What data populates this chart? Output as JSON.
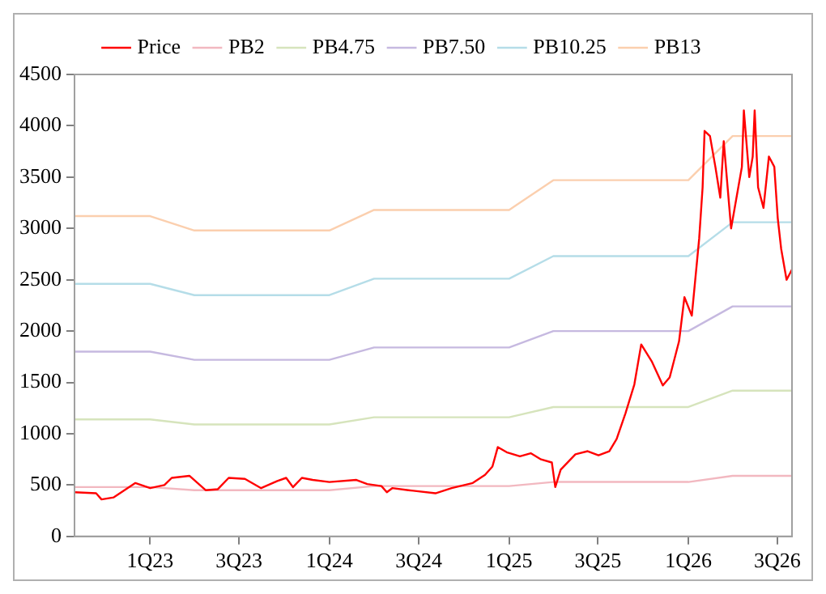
{
  "chart_data": {
    "type": "line",
    "legend": "top",
    "grid": false,
    "marker": "none",
    "line_style": "solid",
    "xlim": [
      "2022-07-31",
      "2026-07-31"
    ],
    "ylim": [
      0,
      4500
    ],
    "yticks": [
      0,
      500,
      1000,
      1500,
      2000,
      2500,
      3000,
      3500,
      4000,
      4500
    ],
    "xticks": [
      {
        "value": "2023-01-01",
        "label": "1Q23"
      },
      {
        "value": "2023-07-01",
        "label": "3Q23"
      },
      {
        "value": "2024-01-01",
        "label": "1Q24"
      },
      {
        "value": "2024-07-01",
        "label": "3Q24"
      },
      {
        "value": "2025-01-01",
        "label": "1Q25"
      },
      {
        "value": "2025-07-01",
        "label": "3Q25"
      },
      {
        "value": "2026-01-01",
        "label": "1Q26"
      },
      {
        "value": "2026-07-01",
        "label": "3Q26"
      }
    ],
    "series": [
      {
        "name": "Price",
        "color": "#ff0000",
        "x": [
          "2022-07-31",
          "2022-09-13",
          "2022-09-24",
          "2022-10-19",
          "2022-12-02",
          "2023-01-01",
          "2023-01-30",
          "2023-02-14",
          "2023-03-22",
          "2023-04-24",
          "2023-05-19",
          "2023-06-10",
          "2023-07-13",
          "2023-08-15",
          "2023-09-17",
          "2023-10-05",
          "2023-10-19",
          "2023-11-06",
          "2023-11-28",
          "2024-01-01",
          "2024-02-25",
          "2024-03-18",
          "2024-04-16",
          "2024-04-27",
          "2024-05-08",
          "2024-06-10",
          "2024-08-04",
          "2024-09-06",
          "2024-10-19",
          "2024-11-13",
          "2024-11-28",
          "2024-12-09",
          "2024-12-27",
          "2025-01-23",
          "2025-02-14",
          "2025-03-07",
          "2025-03-29",
          "2025-04-05",
          "2025-04-16",
          "2025-05-16",
          "2025-06-10",
          "2025-07-02",
          "2025-07-24",
          "2025-08-08",
          "2025-08-26",
          "2025-09-13",
          "2025-09-27",
          "2025-10-19",
          "2025-11-10",
          "2025-11-24",
          "2025-12-13",
          "2025-12-24",
          "2026-01-08",
          "2026-01-19",
          "2026-01-23",
          "2026-01-30",
          "2026-02-03",
          "2026-02-14",
          "2026-02-25",
          "2026-03-07",
          "2026-03-14",
          "2026-03-29",
          "2026-04-20",
          "2026-04-24",
          "2026-05-05",
          "2026-05-12",
          "2026-05-16",
          "2026-05-23",
          "2026-06-03",
          "2026-06-14",
          "2026-06-25",
          "2026-07-02",
          "2026-07-09",
          "2026-07-20",
          "2026-07-31"
        ],
        "values": [
          430,
          420,
          360,
          380,
          520,
          470,
          500,
          570,
          590,
          450,
          460,
          570,
          560,
          470,
          540,
          570,
          480,
          570,
          550,
          530,
          550,
          510,
          490,
          430,
          470,
          450,
          420,
          470,
          520,
          600,
          680,
          870,
          820,
          780,
          810,
          750,
          720,
          480,
          650,
          800,
          830,
          790,
          830,
          950,
          1200,
          1480,
          1870,
          1700,
          1470,
          1550,
          1900,
          2330,
          2150,
          2700,
          2900,
          3400,
          3950,
          3900,
          3600,
          3300,
          3850,
          3000,
          3600,
          4150,
          3500,
          3700,
          4150,
          3400,
          3200,
          3700,
          3600,
          3100,
          2800,
          2500,
          2600
        ]
      },
      {
        "name": "PB2",
        "color": "#f2b8c0",
        "x": [
          "2022-07-31",
          "2023-01-01",
          "2023-04-01",
          "2024-01-01",
          "2024-04-01",
          "2025-01-01",
          "2025-04-01",
          "2026-01-01",
          "2026-04-01",
          "2026-07-31"
        ],
        "values": [
          480,
          480,
          450,
          450,
          490,
          490,
          530,
          530,
          590,
          590
        ]
      },
      {
        "name": "PB4.75",
        "color": "#d6e4bc",
        "x": [
          "2022-07-31",
          "2023-01-01",
          "2023-04-01",
          "2024-01-01",
          "2024-04-01",
          "2025-01-01",
          "2025-04-01",
          "2026-01-01",
          "2026-04-01",
          "2026-07-31"
        ],
        "values": [
          1140,
          1140,
          1090,
          1090,
          1160,
          1160,
          1260,
          1260,
          1420,
          1420
        ]
      },
      {
        "name": "PB7.50",
        "color": "#c6b9e0",
        "x": [
          "2022-07-31",
          "2023-01-01",
          "2023-04-01",
          "2024-01-01",
          "2024-04-01",
          "2025-01-01",
          "2025-04-01",
          "2026-01-01",
          "2026-04-01",
          "2026-07-31"
        ],
        "values": [
          1800,
          1800,
          1720,
          1720,
          1840,
          1840,
          2000,
          2000,
          2240,
          2240
        ]
      },
      {
        "name": "PB10.25",
        "color": "#b5dde8",
        "x": [
          "2022-07-31",
          "2023-01-01",
          "2023-04-01",
          "2024-01-01",
          "2024-04-01",
          "2025-01-01",
          "2025-04-01",
          "2026-01-01",
          "2026-04-01",
          "2026-07-31"
        ],
        "values": [
          2460,
          2460,
          2350,
          2350,
          2510,
          2510,
          2730,
          2730,
          3060,
          3060
        ]
      },
      {
        "name": "PB13",
        "color": "#fbcfae",
        "x": [
          "2022-07-31",
          "2023-01-01",
          "2023-04-01",
          "2024-01-01",
          "2024-04-01",
          "2025-01-01",
          "2025-04-01",
          "2026-01-01",
          "2026-04-01",
          "2026-07-31"
        ],
        "values": [
          3120,
          3120,
          2980,
          2980,
          3180,
          3180,
          3470,
          3470,
          3900,
          3900
        ]
      }
    ]
  }
}
